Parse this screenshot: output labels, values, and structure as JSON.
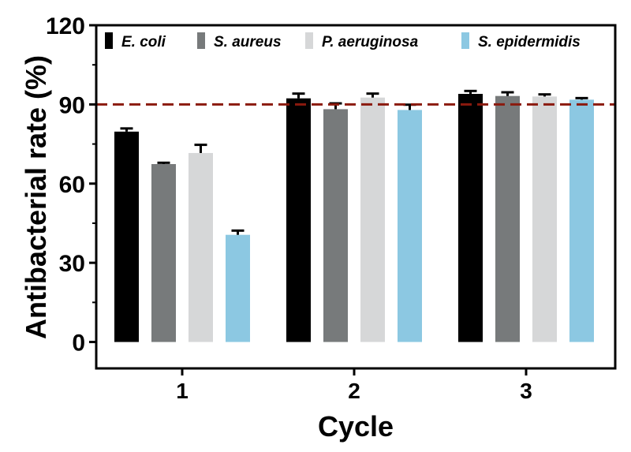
{
  "chart_data": {
    "type": "bar",
    "xlabel": "Cycle",
    "ylabel": "Antibacterial rate (%)",
    "categories": [
      "1",
      "2",
      "3"
    ],
    "ylim": [
      -10,
      120
    ],
    "yticks": [
      0,
      30,
      60,
      90,
      120
    ],
    "grid": false,
    "legend_position": "top",
    "reference_line": {
      "value": 90,
      "style": "dashed",
      "color": "#8B1A0E"
    },
    "series": [
      {
        "name": "E. coli",
        "color": "#000000",
        "values": [
          79.7,
          92.3,
          94.0
        ],
        "errors": [
          1.2,
          1.8,
          1.1
        ]
      },
      {
        "name": "S. aureus",
        "color": "#777A7B",
        "values": [
          67.4,
          88.2,
          93.2
        ],
        "errors": [
          0.5,
          2.2,
          1.4
        ]
      },
      {
        "name": "P. aeruginosa",
        "color": "#D6D7D8",
        "values": [
          71.6,
          92.6,
          93.0
        ],
        "errors": [
          3.1,
          1.5,
          0.8
        ]
      },
      {
        "name": "S. epidermidis",
        "color": "#8CC8E2",
        "values": [
          40.6,
          87.9,
          91.8
        ],
        "errors": [
          1.6,
          2.0,
          0.6
        ]
      }
    ]
  }
}
